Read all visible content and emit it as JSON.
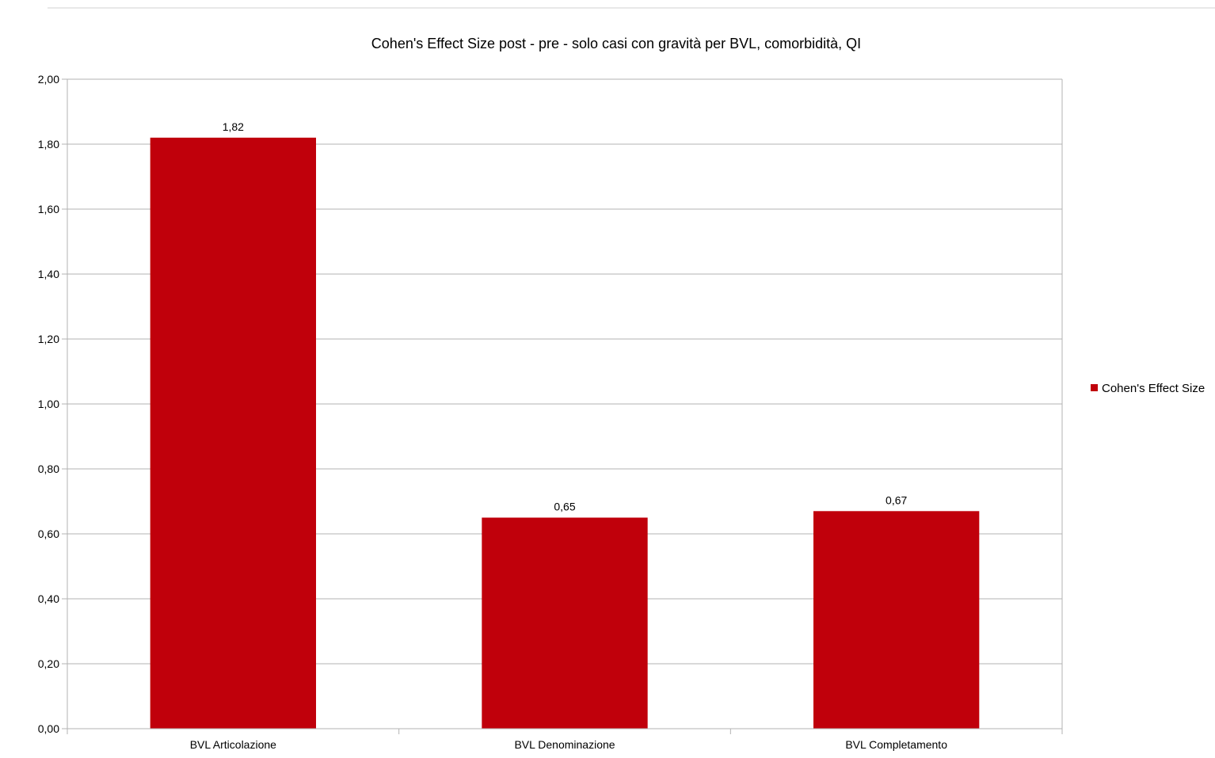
{
  "chart_data": {
    "type": "bar",
    "title": "Cohen's Effect Size post - pre - solo casi con gravità per BVL, comorbidità, QI",
    "categories": [
      "BVL Articolazione",
      "BVL Denominazione",
      "BVL Completamento"
    ],
    "series": [
      {
        "name": "Cohen's Effect Size",
        "values": [
          1.82,
          0.65,
          0.67
        ],
        "labels": [
          "1,82",
          "0,65",
          "0,67"
        ],
        "color": "#c0000b"
      }
    ],
    "ylim": [
      0,
      2
    ],
    "yticks": [
      0,
      0.2,
      0.4,
      0.6,
      0.8,
      1.0,
      1.2,
      1.4,
      1.6,
      1.8,
      2.0
    ],
    "ytick_labels": [
      "0,00",
      "0,20",
      "0,40",
      "0,60",
      "0,80",
      "1,00",
      "1,20",
      "1,40",
      "1,60",
      "1,80",
      "2,00"
    ],
    "grid": true,
    "legend_position": "right",
    "colors": {
      "bar": "#c0000b",
      "grid": "#b3b3b3",
      "axis": "#b3b3b3"
    }
  }
}
